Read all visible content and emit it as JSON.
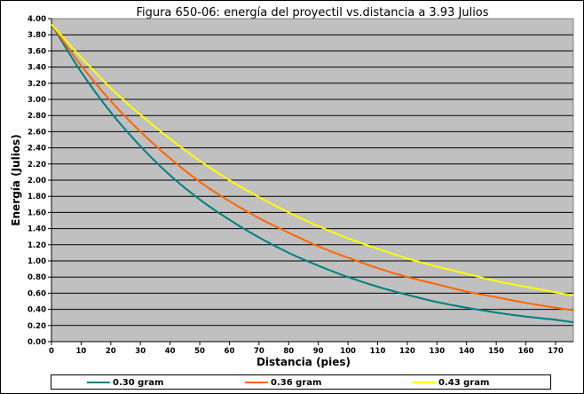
{
  "chart_data": {
    "type": "line",
    "title": "Figura 650-06: energía del proyectil vs.distancia a 3.93 Julios",
    "xlabel": "Distancia (pies)",
    "ylabel": "Energía (Julios)",
    "xlim": [
      0,
      176
    ],
    "ylim": [
      0,
      4
    ],
    "x_ticks": [
      0,
      10,
      20,
      30,
      40,
      50,
      60,
      70,
      80,
      90,
      100,
      110,
      120,
      130,
      140,
      150,
      160,
      170
    ],
    "y_ticks": [
      0,
      0.2,
      0.4,
      0.6,
      0.8,
      1.0,
      1.2,
      1.4,
      1.6,
      1.8,
      2.0,
      2.2,
      2.4,
      2.6,
      2.8,
      3.0,
      3.2,
      3.4,
      3.6,
      3.8,
      4.0
    ],
    "x_tick_labels": [
      "0",
      "10",
      "20",
      "30",
      "40",
      "50",
      "60",
      "70",
      "80",
      "90",
      "100",
      "110",
      "120",
      "130",
      "140",
      "150",
      "160",
      "170"
    ],
    "y_tick_labels": [
      "0.00",
      "0.20",
      "0.40",
      "0.60",
      "0.80",
      "1.00",
      "1.20",
      "1.40",
      "1.60",
      "1.80",
      "2.00",
      "2.20",
      "2.40",
      "2.60",
      "2.80",
      "3.00",
      "3.20",
      "3.40",
      "3.60",
      "3.80",
      "4.00"
    ],
    "grid": "horizontal",
    "legend": "bottom",
    "colors": {
      "plot_background": "#c0c0c0",
      "grid": "#000000",
      "series_030": "#008080",
      "series_036": "#ff6600",
      "series_043": "#ffff00"
    },
    "x": [
      0,
      10,
      20,
      30,
      40,
      50,
      60,
      70,
      80,
      90,
      100,
      110,
      120,
      130,
      140,
      150,
      160,
      170,
      176
    ],
    "series": [
      {
        "name": "0.30 gram",
        "color": "#008080",
        "values": [
          3.93,
          3.34,
          2.84,
          2.42,
          2.06,
          1.76,
          1.51,
          1.29,
          1.1,
          0.94,
          0.8,
          0.68,
          0.58,
          0.49,
          0.42,
          0.36,
          0.31,
          0.27,
          0.24
        ]
      },
      {
        "name": "0.36 gram",
        "color": "#ff6600",
        "values": [
          3.93,
          3.42,
          2.98,
          2.6,
          2.27,
          1.98,
          1.74,
          1.53,
          1.35,
          1.18,
          1.04,
          0.91,
          0.8,
          0.71,
          0.62,
          0.55,
          0.48,
          0.42,
          0.39
        ]
      },
      {
        "name": "0.43 gram",
        "color": "#ffff00",
        "values": [
          3.93,
          3.52,
          3.14,
          2.81,
          2.51,
          2.24,
          2.0,
          1.79,
          1.6,
          1.43,
          1.28,
          1.15,
          1.03,
          0.93,
          0.84,
          0.75,
          0.68,
          0.61,
          0.57
        ]
      }
    ]
  }
}
